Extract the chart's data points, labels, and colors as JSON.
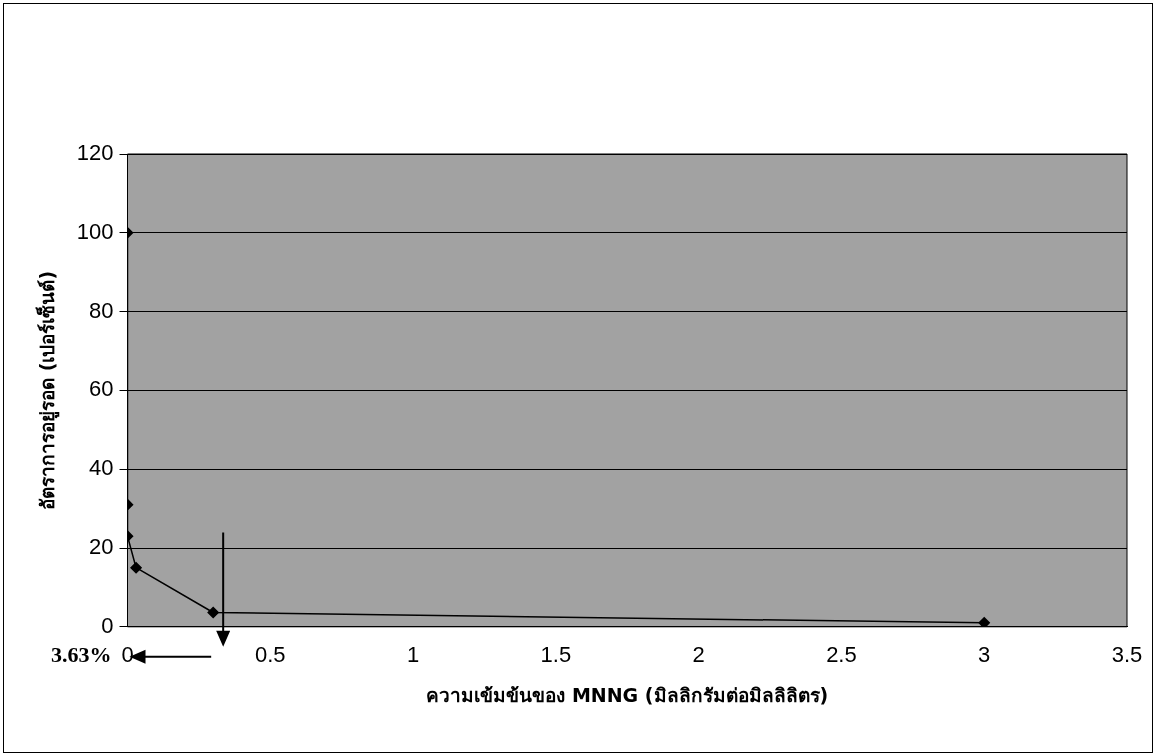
{
  "chart_data": {
    "type": "line",
    "xlabel": "ความเข้มข้นของ MNNG (มิลลิกรัมต่อมิลลิลิตร)",
    "ylabel": "อัตราการอยู่รอด (เปอร์เซ็นต์)",
    "x": [
      0,
      0,
      0,
      0.03,
      0.3,
      3
    ],
    "series": [
      {
        "color": "#000000",
        "values": [
          100,
          31,
          23,
          15,
          3.63,
          1
        ]
      }
    ],
    "xlim": [
      0,
      3.5
    ],
    "xticks": [
      0,
      0.5,
      1,
      1.5,
      2,
      2.5,
      3,
      3.5
    ],
    "ylim": [
      0,
      120
    ],
    "yticks": [
      0,
      20,
      40,
      60,
      80,
      100,
      120
    ],
    "grid": "y",
    "legend": false,
    "marker": "diamond",
    "line_style": "solid",
    "annotations": [
      "3.63%"
    ]
  }
}
